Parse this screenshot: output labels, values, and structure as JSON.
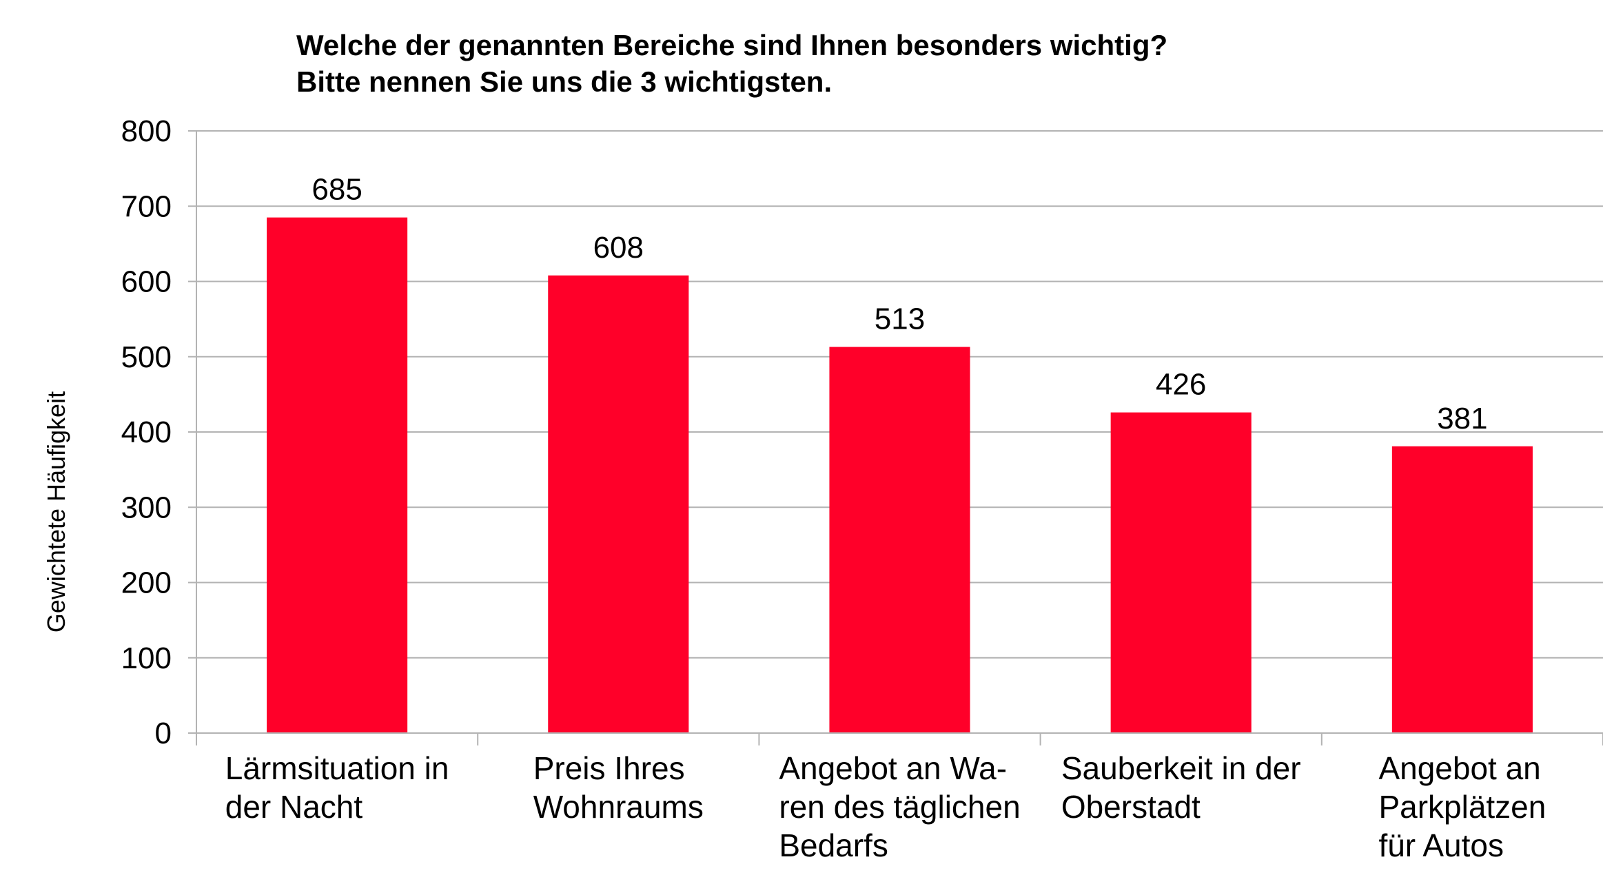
{
  "chart_data": {
    "type": "bar",
    "title": "Welche der genannten Bereiche sind Ihnen besonders wichtig?\nBitte nennen Sie uns die 3 wichtigsten.",
    "y_label": "Gewichtete Häufigkeit",
    "categories": [
      "Lärmsituation in\nder Nacht",
      "Preis Ihres\nWohnraums",
      "Angebot an Wa-\nren des täglichen\nBedarfs",
      "Sauberkeit in der\nOberstadt",
      "Angebot an\nParkplätzen\nfür Autos"
    ],
    "values": [
      685,
      608,
      513,
      426,
      381
    ],
    "color": "#ff0029",
    "ylim": [
      0,
      800
    ],
    "yticks": [
      0,
      100,
      200,
      300,
      400,
      500,
      600,
      700,
      800
    ],
    "grid": true
  }
}
